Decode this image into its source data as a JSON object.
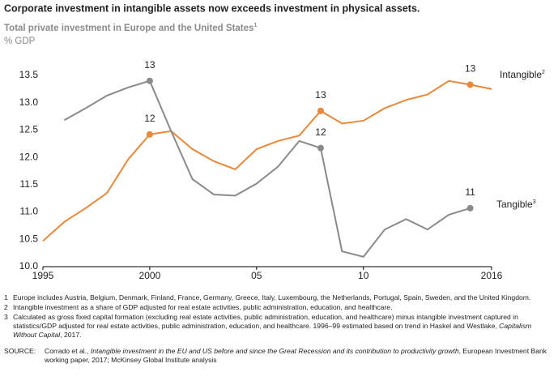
{
  "chart_data": {
    "type": "line",
    "title": "Corporate investment in intangible assets now exceeds investment in physical assets.",
    "subtitle": "Total private investment in Europe and the United States",
    "subtitle_note": "1",
    "y_label": "% GDP",
    "x": [
      1995,
      1996,
      1997,
      1998,
      1999,
      2000,
      2001,
      2002,
      2003,
      2004,
      2005,
      2006,
      2007,
      2008,
      2009,
      2010,
      2011,
      2012,
      2013,
      2014,
      2015,
      2016
    ],
    "series": [
      {
        "name": "Intangible",
        "note": "2",
        "color": "#e9883a",
        "values": [
          10.47,
          10.82,
          11.07,
          11.35,
          11.97,
          12.42,
          12.48,
          12.15,
          11.93,
          11.78,
          12.15,
          12.3,
          12.4,
          12.85,
          12.62,
          12.67,
          12.9,
          13.05,
          13.15,
          13.4,
          13.33,
          13.25
        ],
        "value_labels": [
          null,
          null,
          null,
          null,
          null,
          "12",
          null,
          null,
          null,
          null,
          null,
          null,
          null,
          "13",
          null,
          null,
          null,
          null,
          null,
          null,
          "13",
          null
        ]
      },
      {
        "name": "Tangible",
        "note": "3",
        "color": "#8a8a8a",
        "values": [
          null,
          12.68,
          12.9,
          13.13,
          13.28,
          13.4,
          12.48,
          11.6,
          11.32,
          11.3,
          11.52,
          11.83,
          12.3,
          12.17,
          10.28,
          10.18,
          10.68,
          10.87,
          10.68,
          10.95,
          11.07,
          null
        ],
        "value_labels": [
          null,
          null,
          null,
          null,
          null,
          "13",
          null,
          null,
          null,
          null,
          null,
          null,
          null,
          "12",
          null,
          null,
          null,
          null,
          null,
          null,
          "11",
          null
        ]
      }
    ],
    "xlim": [
      1995,
      2016
    ],
    "xticks": [
      1995,
      2000,
      {
        "value": 2005,
        "label": "05"
      },
      {
        "value": 2010,
        "label": "10"
      },
      2016
    ],
    "ylim": [
      10.0,
      13.5
    ],
    "yticks": [
      {
        "value": 10.0,
        "label": "10.0"
      },
      10.5,
      {
        "value": 11.0,
        "label": "11.0"
      },
      11.5,
      {
        "value": 12.0,
        "label": "12.0"
      },
      12.5,
      {
        "value": 13.0,
        "label": "13.0"
      },
      13.5
    ],
    "grid": false
  },
  "footnotes": [
    {
      "marker": "1",
      "parts": [
        {
          "text": "Europe includes Austria, Belgium, Denmark, Finland, France, Germany, Greece, Italy, Luxembourg, the Netherlands, Portugal, Spain, Sweden, and the United Kingdom."
        }
      ]
    },
    {
      "marker": "2",
      "parts": [
        {
          "text": "Intangible investment as a share of GDP adjusted for real estate activities, public administration, education, and healthcare."
        }
      ]
    },
    {
      "marker": "3",
      "parts": [
        {
          "text": "Calculated as gross fixed capital formation (excluding real estate activities, public administration, education, and healthcare) minus intangible investment captured in statistics/GDP adjusted for real estate activities, public administration, education, and healthcare. 1996–99 estimated based on trend in Haskel and Westlake, "
        },
        {
          "text": "Capitalism Without Capital",
          "italic": true
        },
        {
          "text": ", 2017."
        }
      ]
    }
  ],
  "source": {
    "label": "SOURCE:",
    "parts": [
      {
        "text": "Corrado et al., "
      },
      {
        "text": "Intangible investment in the EU and US before and since the Great Recession and its contribution to productivity growth",
        "italic": true
      },
      {
        "text": ", European Investment Bank working paper, 2017; McKinsey Global Institute analysis"
      }
    ]
  }
}
